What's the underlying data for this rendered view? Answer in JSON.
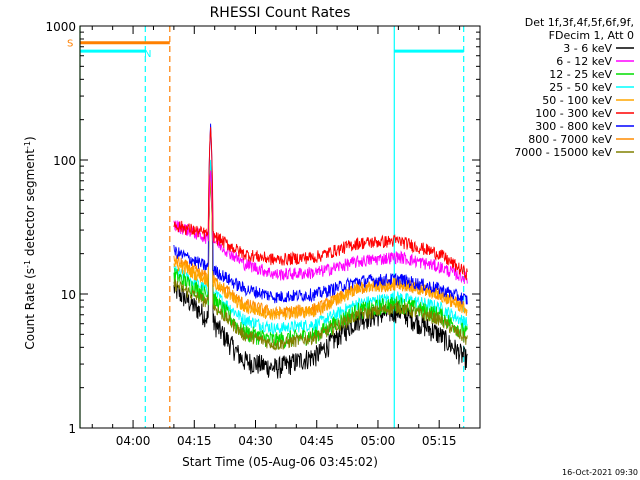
{
  "chart_data": {
    "type": "line",
    "title": "RHESSI Count Rates",
    "xlabel": "Start Time (05-Aug-06 03:45:02)",
    "ylabel_main": "Count Rate (s",
    "ylabel_sup1": "-1",
    "ylabel_mid": " detector segment",
    "ylabel_sup2": "-1",
    "ylabel_end": ")",
    "y_scale": "log",
    "ylim": [
      1,
      1000
    ],
    "xlim": [
      "03:47",
      "05:25"
    ],
    "x_ticks": [
      "04:00",
      "04:15",
      "04:30",
      "04:45",
      "05:00",
      "05:15"
    ],
    "y_ticks": [
      "1",
      "10",
      "100",
      "1000"
    ],
    "legend_header": [
      "Det 1f,3f,4f,5f,6f,9f,",
      "FDecim 1, Att 0"
    ],
    "legend_position": "right",
    "timestamp": "16-Oct-2021 09:30",
    "data_start": "04:10",
    "spike_time": "04:19",
    "series": [
      {
        "name": "3 - 6 keV",
        "color": "#000000",
        "values_at": {
          "04:10": 11,
          "04:20": 6,
          "04:27": 3.2,
          "04:35": 2.8,
          "04:45": 3.5,
          "04:55": 6.5,
          "05:05": 7.5,
          "05:15": 5,
          "05:22": 3.2
        }
      },
      {
        "name": "6 - 12 keV",
        "color": "#ff00ff",
        "values_at": {
          "04:10": 33,
          "04:20": 25,
          "04:27": 17,
          "04:35": 14,
          "04:45": 14.5,
          "04:55": 17.5,
          "05:05": 19,
          "05:15": 16,
          "05:22": 13
        }
      },
      {
        "name": "12 - 25 keV",
        "color": "#00dd00",
        "values_at": {
          "04:10": 14,
          "04:20": 9,
          "04:27": 5.2,
          "04:35": 4.5,
          "04:45": 5,
          "04:55": 7.5,
          "05:05": 8.5,
          "05:15": 7,
          "05:22": 5
        }
      },
      {
        "name": "25 - 50 keV",
        "color": "#00ffff",
        "values_at": {
          "04:10": 15,
          "04:20": 10,
          "04:27": 6.5,
          "04:35": 5.5,
          "04:45": 6,
          "04:55": 8.5,
          "05:05": 9.5,
          "05:15": 8,
          "05:22": 6
        }
      },
      {
        "name": "50 - 100 keV",
        "color": "#ffa500",
        "values_at": {
          "04:10": 17,
          "04:20": 12,
          "04:27": 8,
          "04:35": 7,
          "04:45": 7.5,
          "04:55": 11,
          "05:05": 12,
          "05:15": 10,
          "05:22": 7.5
        }
      },
      {
        "name": "100 - 300 keV",
        "color": "#ff0000",
        "values_at": {
          "04:10": 33,
          "04:20": 27,
          "04:27": 20,
          "04:35": 18,
          "04:45": 19,
          "04:55": 24,
          "05:05": 25,
          "05:15": 20,
          "05:22": 14
        }
      },
      {
        "name": "300 - 800 keV",
        "color": "#0000ff",
        "values_at": {
          "04:10": 21,
          "04:20": 15,
          "04:27": 11,
          "04:35": 9.5,
          "04:45": 10,
          "04:55": 12.5,
          "05:05": 13,
          "05:15": 11,
          "05:22": 9
        }
      },
      {
        "name": "800 - 7000 keV",
        "color": "#ff8c00",
        "values_at": {
          "04:10": 18,
          "04:20": 12.5,
          "04:27": 8.5,
          "04:35": 7.2,
          "04:45": 7.8,
          "04:55": 11,
          "05:05": 12,
          "05:15": 10,
          "05:22": 7.8
        }
      },
      {
        "name": "7000 - 15000 keV",
        "color": "#808000",
        "values_at": {
          "04:10": 12,
          "04:20": 8,
          "04:27": 5,
          "04:35": 4.2,
          "04:45": 4.8,
          "04:55": 7,
          "05:05": 8,
          "05:15": 6.5,
          "05:22": 4.5
        }
      }
    ],
    "flags": [
      {
        "label": "S",
        "color": "#ff8000",
        "value": 750,
        "x_start": "03:47",
        "x_end": "04:09"
      },
      {
        "label": "N",
        "color": "#00ffff",
        "value": 650,
        "x_start": "03:47",
        "x_end": "04:03"
      },
      {
        "label": "",
        "color": "#00ffff",
        "value": 650,
        "x_start": "05:04",
        "x_end": "05:21"
      }
    ],
    "vertical_lines": [
      {
        "time": "03:47",
        "color": "#00cc00",
        "style": "solid"
      },
      {
        "time": "04:03",
        "color": "#00ffff",
        "style": "dashed"
      },
      {
        "time": "04:09",
        "color": "#ff8000",
        "style": "dashed"
      },
      {
        "time": "05:04",
        "color": "#00ffff",
        "style": "solid"
      },
      {
        "time": "05:21",
        "color": "#00ffff",
        "style": "dashed"
      }
    ]
  }
}
